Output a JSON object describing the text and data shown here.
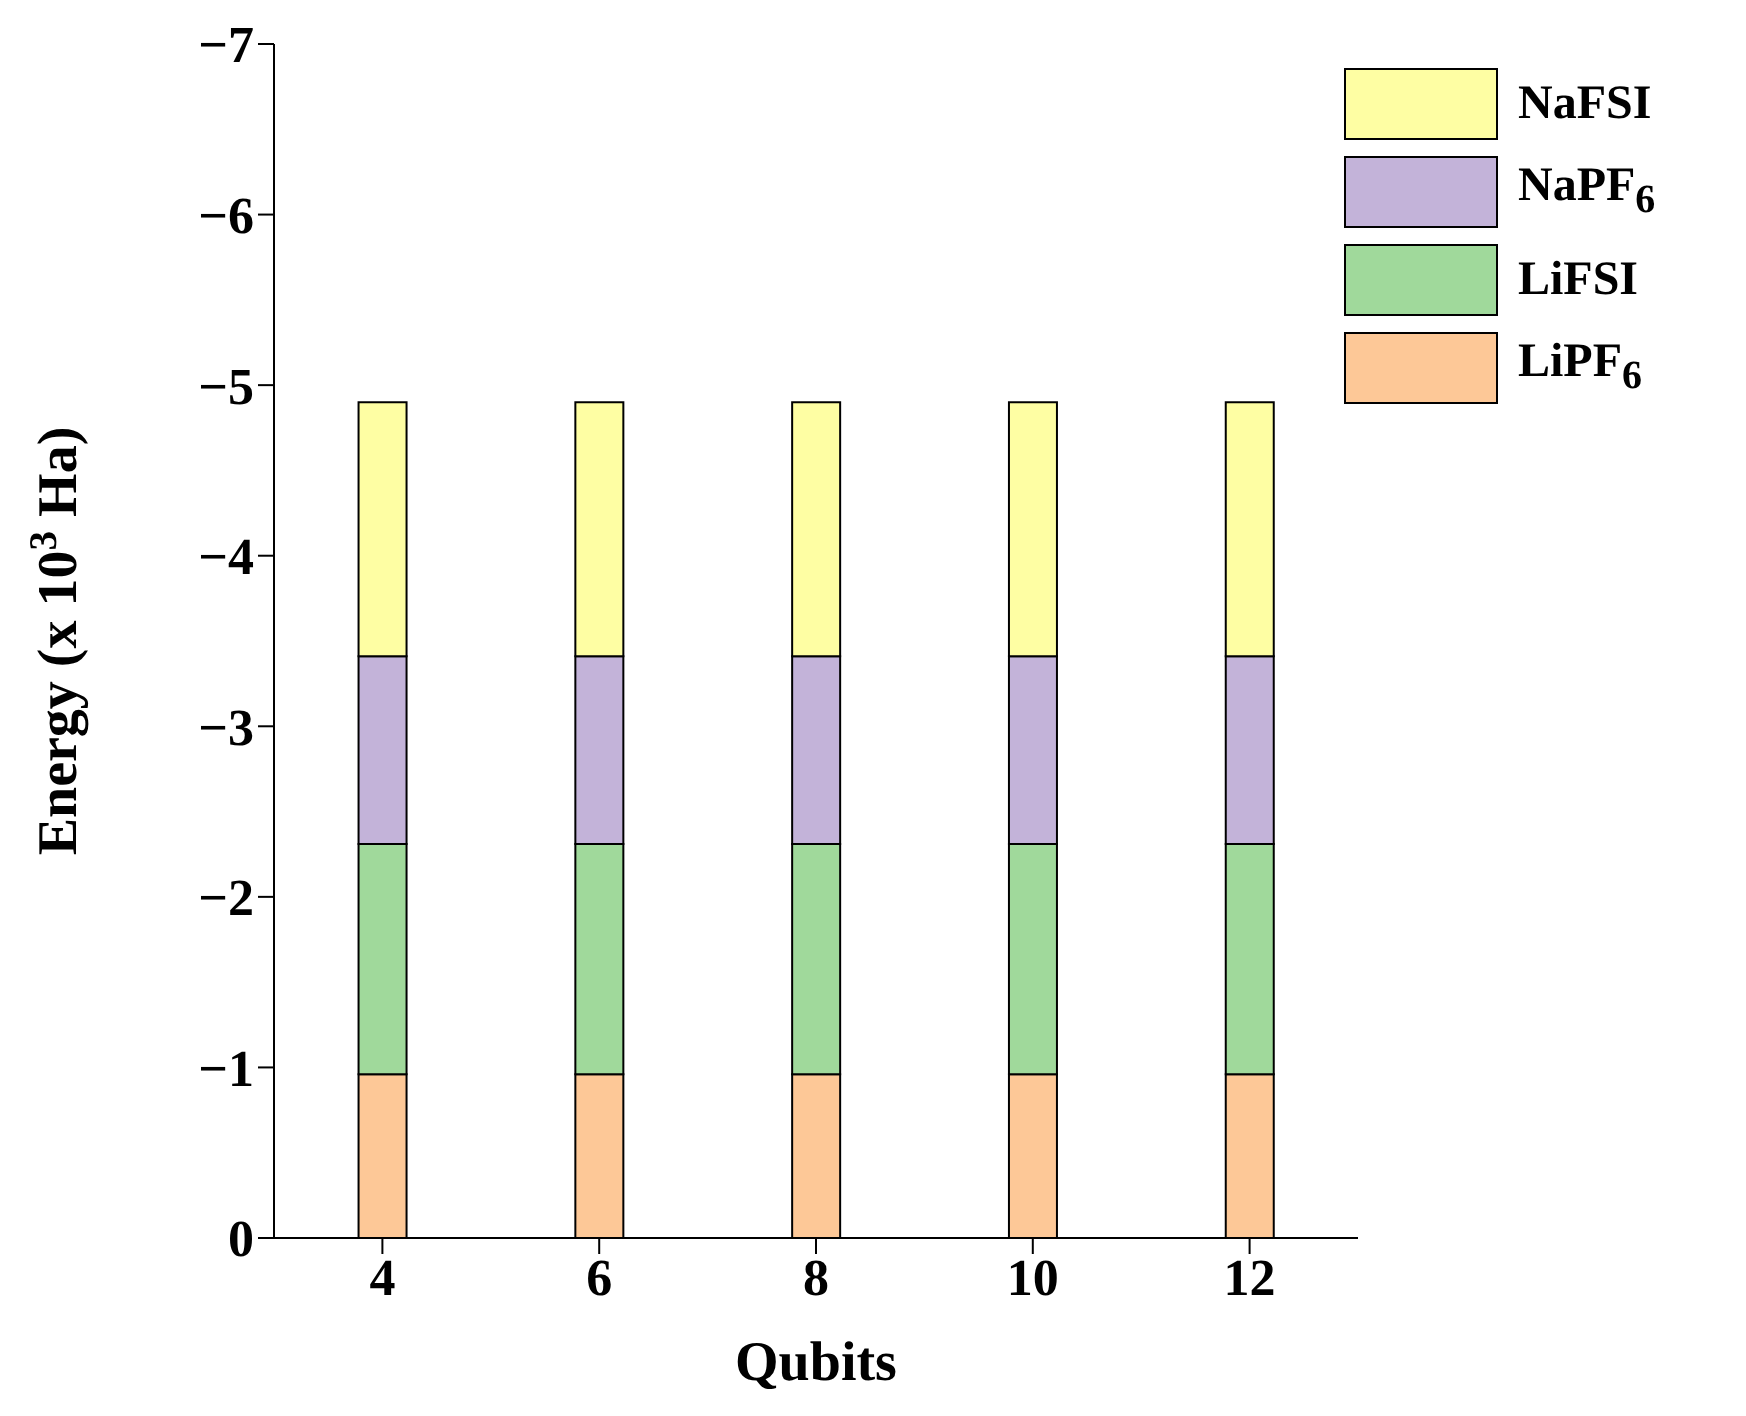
{
  "chart_data": {
    "type": "bar",
    "stacked": true,
    "xlabel": "Qubits",
    "ylabel": "Energy (x 10$^{3}$ Ha)",
    "categories": [
      "4",
      "6",
      "8",
      "10",
      "12"
    ],
    "series": [
      {
        "name": "LiPF$_{6}$",
        "color": "#fdc897",
        "values": [
          -0.96,
          -0.96,
          -0.96,
          -0.96,
          -0.96
        ]
      },
      {
        "name": "LiFSI",
        "color": "#a0d99b",
        "values": [
          -1.35,
          -1.35,
          -1.35,
          -1.35,
          -1.35
        ]
      },
      {
        "name": "NaPF$_{6}$",
        "color": "#c3b3d9",
        "values": [
          -1.1,
          -1.1,
          -1.1,
          -1.1,
          -1.1
        ]
      },
      {
        "name": "NaFSI",
        "color": "#fefea3",
        "values": [
          -1.49,
          -1.49,
          -1.49,
          -1.49,
          -1.49
        ]
      }
    ],
    "ylim": [
      0,
      -7
    ],
    "yticks": [
      0,
      -1,
      -2,
      -3,
      -4,
      -5,
      -6,
      -7
    ],
    "legend": "top right",
    "grid": false
  }
}
